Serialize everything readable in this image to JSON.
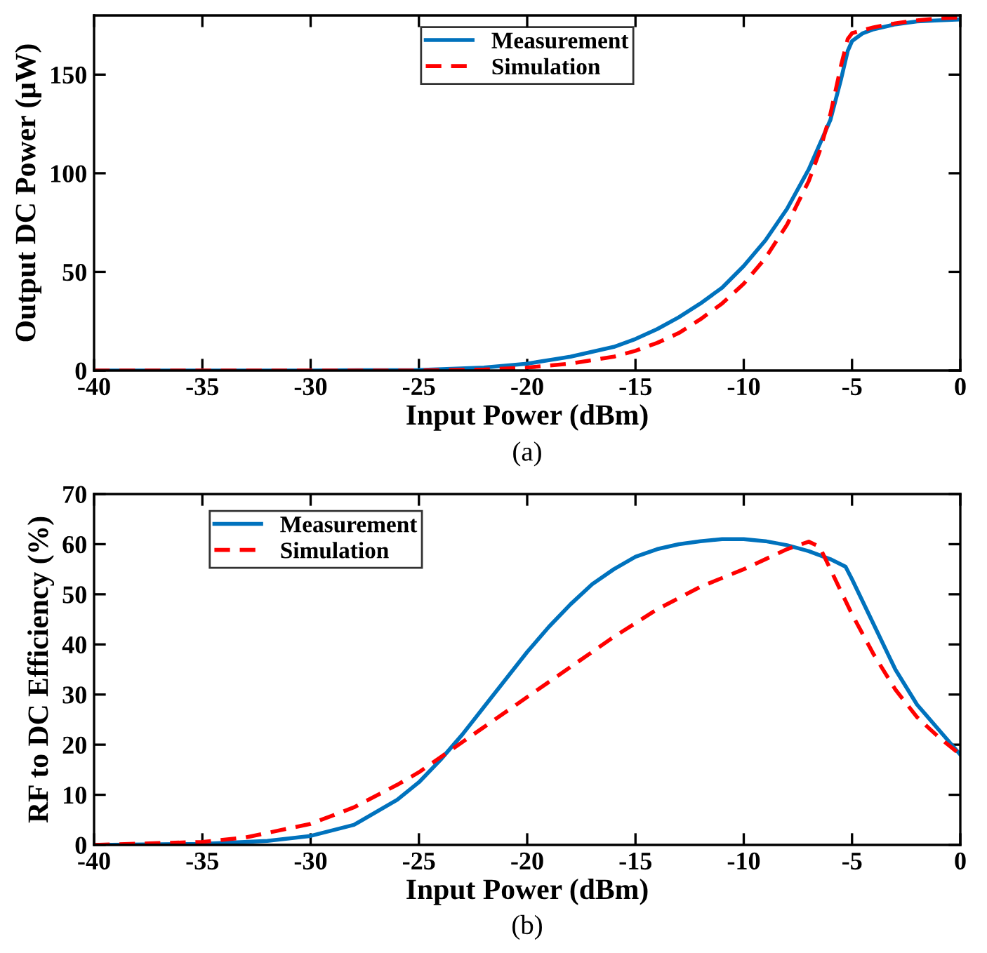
{
  "chart_data": [
    {
      "type": "line",
      "xlabel": "Input Power (dBm)",
      "ylabel": "Output DC Power (μW)",
      "annotations": [
        "(a)"
      ],
      "xlim": [
        -40,
        0
      ],
      "ylim": [
        0,
        180
      ],
      "xticks": [
        -40,
        -35,
        -30,
        -25,
        -20,
        -15,
        -10,
        -5,
        0
      ],
      "yticks": [
        0,
        50,
        100,
        150
      ],
      "legend": "top",
      "grid": false,
      "series": [
        {
          "name": "Measurement",
          "color": "#0072bd",
          "line_style": "solid",
          "x": [
            -40,
            -30,
            -25,
            -22,
            -20,
            -18,
            -16,
            -15,
            -14,
            -13,
            -12,
            -11,
            -10,
            -9,
            -8,
            -7,
            -6,
            -5.5,
            -5.2,
            -5,
            -4.5,
            -4,
            -3,
            -2,
            -1,
            0
          ],
          "values": [
            0,
            0,
            0.3,
            1.5,
            3.5,
            7,
            12,
            16,
            21,
            27,
            34,
            42,
            53,
            66,
            82,
            102,
            127,
            148,
            162,
            167,
            171,
            173,
            175.5,
            177,
            177.5,
            178
          ]
        },
        {
          "name": "Simulation",
          "color": "#ff0000",
          "line_style": "dashed",
          "x": [
            -40,
            -25,
            -22,
            -20,
            -18,
            -16,
            -15,
            -14,
            -13,
            -12,
            -11,
            -10,
            -9,
            -8,
            -7,
            -6.5,
            -6,
            -5.5,
            -5.2,
            -5,
            -4,
            -3,
            -2,
            -1,
            0
          ],
          "values": [
            0,
            0,
            0.5,
            1.5,
            3.5,
            7,
            10,
            14,
            19,
            26,
            34,
            44,
            57,
            74,
            96,
            111,
            130,
            155,
            168,
            171,
            174,
            176,
            177.5,
            178.5,
            179
          ]
        }
      ]
    },
    {
      "type": "line",
      "xlabel": "Input Power (dBm)",
      "ylabel": "RF to DC Efficiency (%)",
      "annotations": [
        "(b)"
      ],
      "xlim": [
        -40,
        0
      ],
      "ylim": [
        0,
        70
      ],
      "xticks": [
        -40,
        -35,
        -30,
        -25,
        -20,
        -15,
        -10,
        -5,
        0
      ],
      "yticks": [
        0,
        10,
        20,
        30,
        40,
        50,
        60,
        70
      ],
      "legend": "top left",
      "grid": false,
      "series": [
        {
          "name": "Measurement",
          "color": "#0072bd",
          "line_style": "solid",
          "x": [
            -40,
            -35,
            -32,
            -30,
            -28,
            -26,
            -25,
            -24,
            -23,
            -22,
            -21,
            -20,
            -19,
            -18,
            -17,
            -16,
            -15,
            -14,
            -13,
            -12,
            -11,
            -10,
            -9,
            -8,
            -7,
            -6,
            -5.3,
            -5,
            -4,
            -3,
            -2,
            -1,
            0
          ],
          "values": [
            0,
            0.2,
            0.8,
            1.8,
            4,
            9,
            12.5,
            17,
            22,
            27.5,
            33,
            38.5,
            43.5,
            48,
            52,
            55,
            57.5,
            59,
            60,
            60.6,
            61,
            61,
            60.6,
            59.8,
            58.6,
            57,
            55.5,
            53,
            44,
            35,
            28,
            23,
            18
          ]
        },
        {
          "name": "Simulation",
          "color": "#ff0000",
          "line_style": "dashed",
          "x": [
            -40,
            -35,
            -33,
            -30,
            -28,
            -26,
            -25,
            -24,
            -22,
            -20,
            -18,
            -16,
            -14,
            -12,
            -10,
            -9,
            -8,
            -7,
            -6.5,
            -6,
            -5,
            -4,
            -3,
            -2,
            -1,
            0
          ],
          "values": [
            0,
            0.6,
            1.5,
            4.2,
            7.5,
            12,
            14.5,
            17.5,
            23.5,
            29.5,
            35.5,
            41.5,
            47,
            51.5,
            55,
            57,
            59,
            60.5,
            59.5,
            55,
            46,
            38,
            31,
            25.5,
            21.5,
            18
          ]
        }
      ]
    }
  ]
}
